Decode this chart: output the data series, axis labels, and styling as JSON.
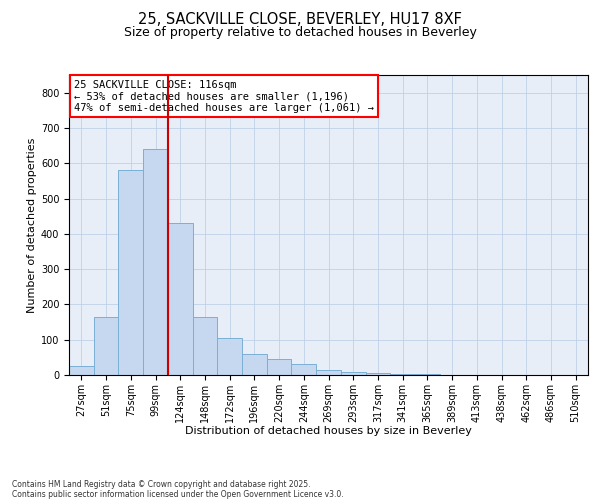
{
  "title1": "25, SACKVILLE CLOSE, BEVERLEY, HU17 8XF",
  "title2": "Size of property relative to detached houses in Beverley",
  "xlabel": "Distribution of detached houses by size in Beverley",
  "ylabel": "Number of detached properties",
  "categories": [
    "27sqm",
    "51sqm",
    "75sqm",
    "99sqm",
    "124sqm",
    "148sqm",
    "172sqm",
    "196sqm",
    "220sqm",
    "244sqm",
    "269sqm",
    "293sqm",
    "317sqm",
    "341sqm",
    "365sqm",
    "389sqm",
    "413sqm",
    "438sqm",
    "462sqm",
    "486sqm",
    "510sqm"
  ],
  "values": [
    25,
    165,
    580,
    640,
    430,
    165,
    105,
    60,
    45,
    30,
    15,
    8,
    5,
    3,
    2,
    1,
    0,
    0,
    0,
    0,
    0
  ],
  "bar_color": "#c5d8f0",
  "bar_edge_color": "#7aafd4",
  "vline_color": "#cc0000",
  "vline_x_index": 3.5,
  "annotation_title": "25 SACKVILLE CLOSE: 116sqm",
  "annotation_line2": "← 53% of detached houses are smaller (1,196)",
  "annotation_line3": "47% of semi-detached houses are larger (1,061) →",
  "ylim": [
    0,
    850
  ],
  "yticks": [
    0,
    100,
    200,
    300,
    400,
    500,
    600,
    700,
    800
  ],
  "grid_color": "#b8cce4",
  "background_color": "#e8eef8",
  "footnote_line1": "Contains HM Land Registry data © Crown copyright and database right 2025.",
  "footnote_line2": "Contains public sector information licensed under the Open Government Licence v3.0.",
  "title1_fontsize": 10.5,
  "title2_fontsize": 9,
  "axis_label_fontsize": 8,
  "tick_fontsize": 7,
  "annot_fontsize": 7.5
}
